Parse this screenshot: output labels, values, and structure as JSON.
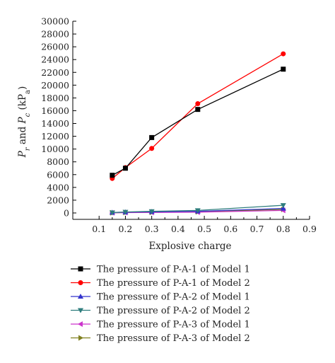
{
  "chart_data": {
    "type": "line",
    "xlabel": "Explosive charge",
    "ylabel_parts": [
      "P",
      "r",
      " and ",
      "P",
      "c",
      " (kP",
      "a",
      ")"
    ],
    "xlim": [
      0,
      0.9
    ],
    "ylim": [
      -1000,
      30000
    ],
    "xticks": [
      "0.1",
      "0.2",
      "0.3",
      "0.4",
      "0.5",
      "0.6",
      "0.7",
      "0.8",
      "0.9"
    ],
    "yticks": [
      "0",
      "2000",
      "4000",
      "6000",
      "8000",
      "10000",
      "12000",
      "14000",
      "16000",
      "18000",
      "20000",
      "22000",
      "24000",
      "26000",
      "28000",
      "30000"
    ],
    "legend_position": "bottom",
    "series": [
      {
        "name": "The pressure of P-A-1 of Model 1",
        "color": "#000000",
        "marker": "square",
        "x": [
          0.15,
          0.2,
          0.3,
          0.475,
          0.8
        ],
        "y": [
          5900,
          7000,
          11800,
          16200,
          22500
        ]
      },
      {
        "name": "The pressure of P-A-1 of Model 2",
        "color": "#ff0000",
        "marker": "circle",
        "x": [
          0.15,
          0.2,
          0.3,
          0.475,
          0.8
        ],
        "y": [
          5400,
          7100,
          10100,
          17100,
          24900
        ]
      },
      {
        "name": "The pressure of P-A-2 of Model 1",
        "color": "#3333cc",
        "marker": "triangle-up",
        "x": [
          0.15,
          0.2,
          0.3,
          0.475,
          0.8
        ],
        "y": [
          80,
          120,
          180,
          260,
          700
        ]
      },
      {
        "name": "The pressure of P-A-2 of Model 2",
        "color": "#2e7d7d",
        "marker": "triangle-down",
        "x": [
          0.15,
          0.2,
          0.3,
          0.475,
          0.8
        ],
        "y": [
          60,
          150,
          250,
          400,
          1200
        ]
      },
      {
        "name": "The pressure of P-A-3 of Model 1",
        "color": "#cc33cc",
        "marker": "triangle-left",
        "x": [
          0.15,
          0.2,
          0.3,
          0.475,
          0.8
        ],
        "y": [
          20,
          50,
          80,
          120,
          400
        ]
      },
      {
        "name": "The pressure of P-A-3 of Model 2",
        "color": "#808020",
        "marker": "triangle-right",
        "x": [
          0.15,
          0.2,
          0.3,
          0.475,
          0.8
        ],
        "y": [
          30,
          70,
          100,
          180,
          550
        ]
      }
    ]
  }
}
